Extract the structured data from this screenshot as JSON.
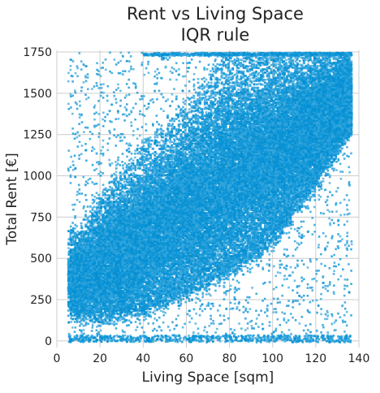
{
  "chart_data": {
    "type": "scatter",
    "title": "Rent vs Living Space",
    "subtitle": "IQR rule",
    "xlabel": "Living Space [sqm]",
    "ylabel": "Total Rent [€]",
    "xlim": [
      0,
      140
    ],
    "ylim": [
      -40,
      1760
    ],
    "x_ticks": [
      0,
      20,
      40,
      60,
      80,
      100,
      120,
      140
    ],
    "y_ticks": [
      0,
      250,
      500,
      750,
      1000,
      1250,
      1500,
      1750
    ],
    "grid": true,
    "point_color": "#0090d8",
    "point_count": 50000,
    "legend": "none",
    "distribution": {
      "x_range": [
        5,
        136
      ],
      "y_range": [
        0,
        1750
      ],
      "dense_band_lower_edge": [
        {
          "x": 10,
          "y": 190
        },
        {
          "x": 20,
          "y": 170
        },
        {
          "x": 40,
          "y": 220
        },
        {
          "x": 60,
          "y": 330
        },
        {
          "x": 80,
          "y": 460
        },
        {
          "x": 100,
          "y": 650
        },
        {
          "x": 120,
          "y": 1000
        },
        {
          "x": 135,
          "y": 1300
        }
      ],
      "dense_band_upper_edge": [
        {
          "x": 10,
          "y": 650
        },
        {
          "x": 20,
          "y": 850
        },
        {
          "x": 40,
          "y": 1150
        },
        {
          "x": 60,
          "y": 1400
        },
        {
          "x": 80,
          "y": 1750
        },
        {
          "x": 100,
          "y": 1750
        },
        {
          "x": 120,
          "y": 1750
        },
        {
          "x": 135,
          "y": 1750
        }
      ],
      "trend": [
        {
          "x": 20,
          "y": 380
        },
        {
          "x": 40,
          "y": 600
        },
        {
          "x": 60,
          "y": 850
        },
        {
          "x": 80,
          "y": 1080
        },
        {
          "x": 100,
          "y": 1300
        },
        {
          "x": 120,
          "y": 1500
        }
      ]
    }
  }
}
